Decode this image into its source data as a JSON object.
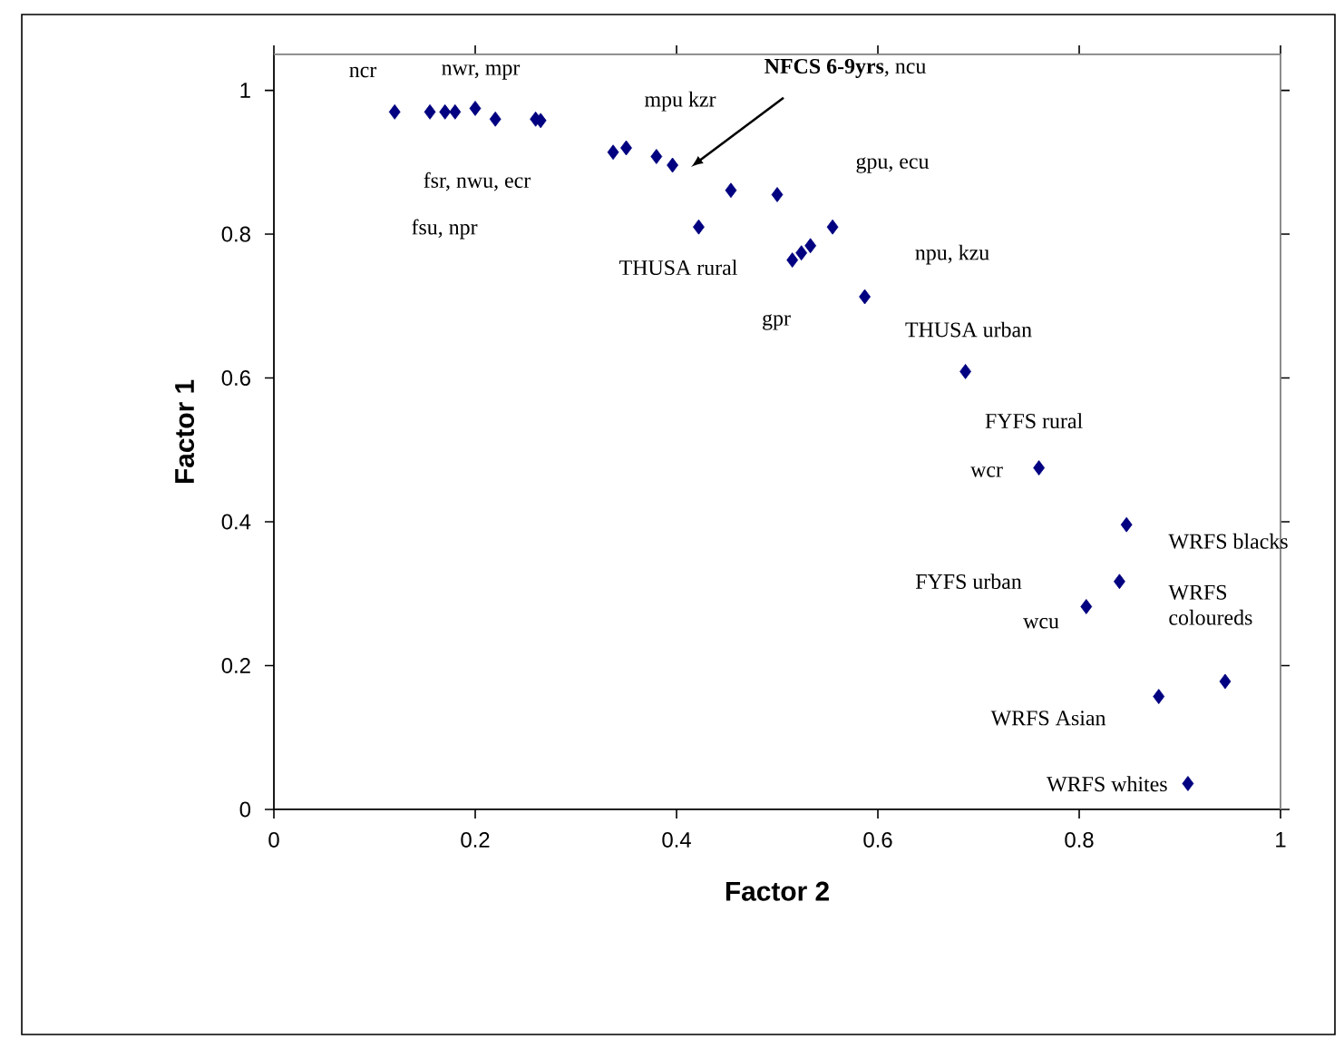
{
  "chart_data": {
    "type": "scatter",
    "xlabel": "Factor 2",
    "ylabel": "Factor 1",
    "x": [
      0.12,
      0.155,
      0.17,
      0.18,
      0.2,
      0.22,
      0.26,
      0.265,
      0.337,
      0.35,
      0.38,
      0.396,
      0.422,
      0.454,
      0.5,
      0.555,
      0.515,
      0.524,
      0.533,
      0.587,
      0.687,
      0.76,
      0.847,
      0.84,
      0.807,
      0.945,
      0.879,
      0.908
    ],
    "values": [
      0.97,
      0.97,
      0.97,
      0.97,
      0.975,
      0.96,
      0.96,
      0.958,
      0.914,
      0.92,
      0.908,
      0.896,
      0.81,
      0.861,
      0.855,
      0.81,
      0.764,
      0.774,
      0.784,
      0.713,
      0.609,
      0.475,
      0.396,
      0.317,
      0.282,
      0.178,
      0.157,
      0.036
    ],
    "color": "#000080",
    "marker": "diamond",
    "xlim": [
      0,
      1
    ],
    "ylim": [
      0,
      1.05
    ],
    "xticks": [
      0,
      0.2,
      0.4,
      0.6,
      0.8,
      1
    ],
    "yticks": [
      0,
      0.2,
      0.4,
      0.6,
      0.8,
      1
    ],
    "annotations": [
      "ncr",
      "nwr, mpr",
      "**NFCS 6-9yrs**, ncu",
      "mpu kzr",
      "fsr, nwu, ecr",
      "gpu, ecu",
      "fsu, npr",
      "THUSA rural",
      "npu, kzu",
      "gpr",
      "THUSA urban",
      "FYFS rural",
      "wcr",
      "WRFS blacks",
      "WRFS coloureds",
      "FYFS urban",
      "wcu",
      "WRFS Asian",
      "WRFS whites"
    ]
  }
}
